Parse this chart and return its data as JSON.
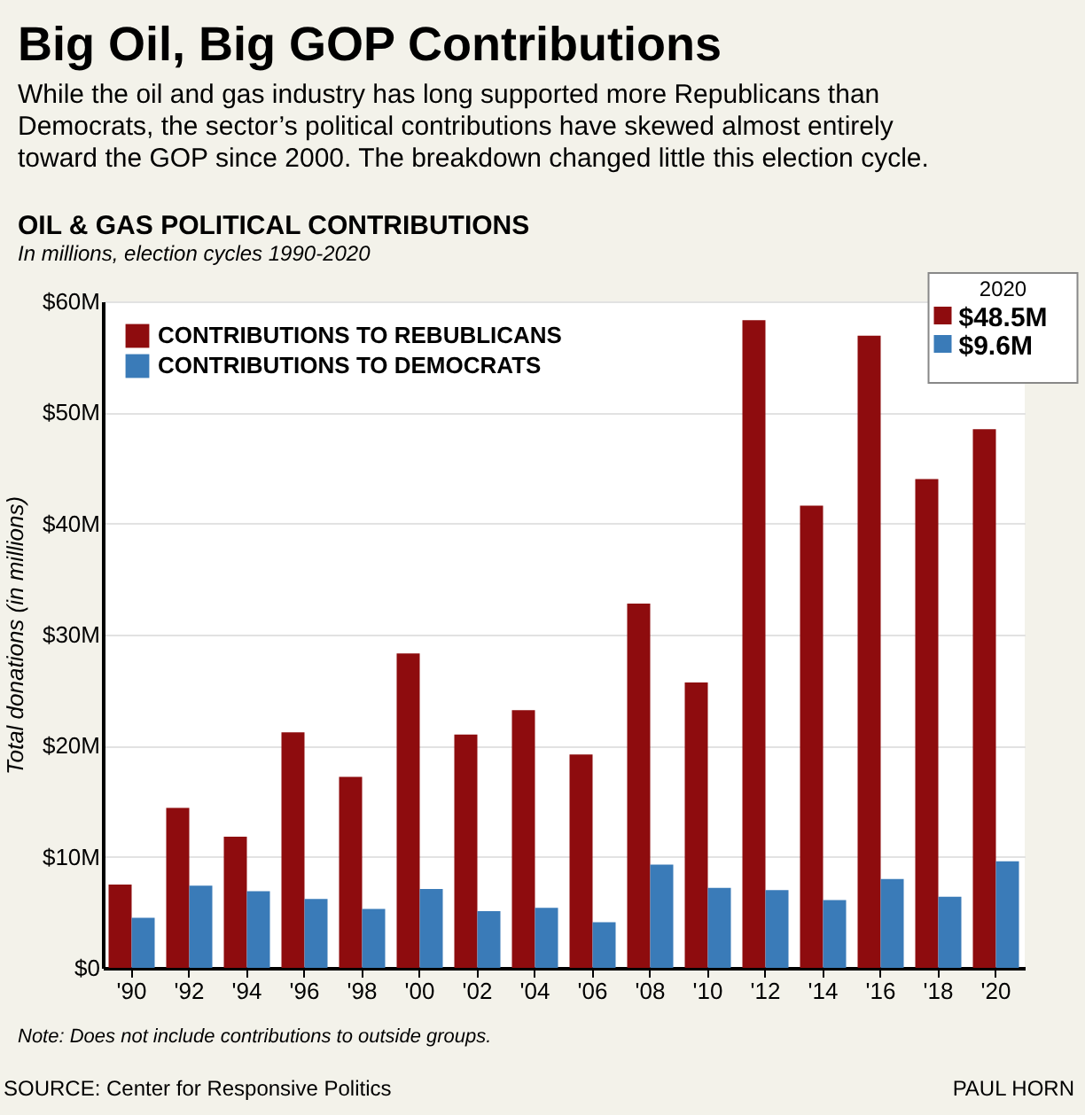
{
  "chart_data": {
    "type": "bar",
    "title": "Big Oil, Big GOP Contributions",
    "subtitle": "While the oil and gas industry has long supported more Republicans than Democrats, the sector’s political contributions have skewed almost entirely toward the GOP since 2000. The breakdown changed little this election cycle.",
    "categories": [
      "'90",
      "'92",
      "'94",
      "'96",
      "'98",
      "'00",
      "'02",
      "'04",
      "'06",
      "'08",
      "'10",
      "'12",
      "'14",
      "'16",
      "'18",
      "'20"
    ],
    "series": [
      {
        "name": "CONTRIBUTIONS TO REBUBLICANS",
        "color": "#8e0c0e",
        "values": [
          7.5,
          14.4,
          11.8,
          21.2,
          17.2,
          28.3,
          21.0,
          23.2,
          19.2,
          32.8,
          25.7,
          58.3,
          41.6,
          56.9,
          44.0,
          48.5
        ]
      },
      {
        "name": "CONTRIBUTIONS TO DEMOCRATS",
        "color": "#3a7bb8",
        "values": [
          4.5,
          7.4,
          6.9,
          6.2,
          5.3,
          7.1,
          5.1,
          5.4,
          4.1,
          9.3,
          7.2,
          7.0,
          6.1,
          8.0,
          6.4,
          9.6
        ]
      }
    ],
    "ylabel": "Total donations (in millions)",
    "ylim": [
      0,
      60
    ],
    "yticks": [
      {
        "value": 0,
        "label": "$0"
      },
      {
        "value": 10,
        "label": "$10M"
      },
      {
        "value": 20,
        "label": "$20M"
      },
      {
        "value": 30,
        "label": "$30M"
      },
      {
        "value": 40,
        "label": "$40M"
      },
      {
        "value": 50,
        "label": "$50M"
      },
      {
        "value": 60,
        "label": "$60M"
      }
    ],
    "grid": "y",
    "legend": "top left",
    "annotations": [
      "OIL & GAS POLITICAL CONTRIBUTIONS",
      "In millions, election cycles 1990-2020",
      "2020",
      "$48.5M",
      "$9.6M",
      "Note: Does not include contributions to outside groups.",
      "SOURCE: Center for Responsive Politics",
      "PAUL HORN"
    ]
  }
}
